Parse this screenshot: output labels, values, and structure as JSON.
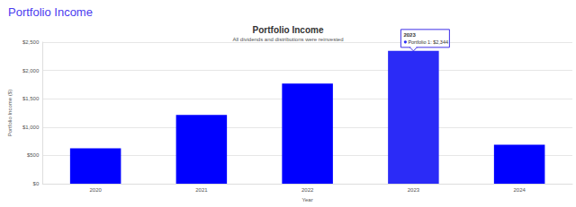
{
  "header": "Portfolio Income",
  "chart_data": {
    "type": "bar",
    "title": "Portfolio Income",
    "subtitle": "All dividends and distributions were reinvested",
    "x_label": "Year",
    "y_label": "Portfolio Income ($)",
    "categories": [
      "2020",
      "2021",
      "2022",
      "2023",
      "2024"
    ],
    "values": [
      625,
      1215,
      1770,
      2344,
      690
    ],
    "colors": [
      "#0000ff",
      "#0000ff",
      "#0000ff",
      "#2b2bf7",
      "#0000ff"
    ],
    "ylim": [
      0,
      2500
    ],
    "yticks": [
      {
        "value": 0,
        "label": "$0"
      },
      {
        "value": 500,
        "label": "$500"
      },
      {
        "value": 1000,
        "label": "$1,000"
      },
      {
        "value": 1500,
        "label": "$1,500"
      },
      {
        "value": 2000,
        "label": "$2,000"
      },
      {
        "value": 2500,
        "label": "$2,500"
      }
    ],
    "grid": true,
    "annotation": {
      "category": "2023",
      "title": "2023",
      "text": "Portfolio 1: $2,344"
    }
  }
}
